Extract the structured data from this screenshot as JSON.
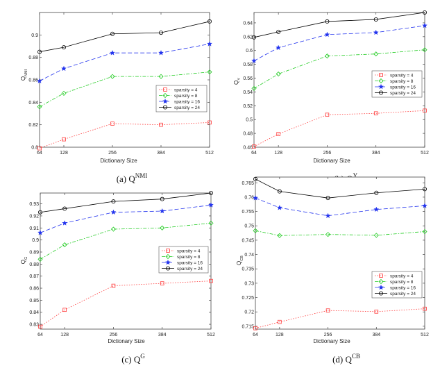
{
  "legend_labels": [
    "sparsity = 4",
    "sparsity = 8",
    "sparsity = 16",
    "sparsity = 24"
  ],
  "series_styles": [
    {
      "color": "#ff3b3b",
      "dash": "1.5,2",
      "marker": "square"
    },
    {
      "color": "#22cc22",
      "dash": "5,2,1.5,2",
      "marker": "diamond"
    },
    {
      "color": "#2233ee",
      "dash": "6,3",
      "marker": "star"
    },
    {
      "color": "#000000",
      "dash": "",
      "marker": "circle"
    }
  ],
  "chart_data": [
    {
      "type": "line",
      "caption_main": "(a) Q",
      "caption_sup": "NMI",
      "xlabel": "Dictionary Size",
      "ylabel": "Q",
      "ylabel_sub": "NMI",
      "x": [
        64,
        128,
        256,
        384,
        512
      ],
      "x_tick_labels": [
        "64",
        "128",
        "256",
        "384",
        "512"
      ],
      "ylim": [
        0.8,
        0.92
      ],
      "y_ticks": [
        "0.8",
        "0.82",
        "0.84",
        "0.86",
        "0.88",
        "0.9"
      ],
      "legend_position": "middle-right",
      "series": [
        {
          "name": "sparsity = 4",
          "values": [
            0.799,
            0.807,
            0.821,
            0.82,
            0.822
          ]
        },
        {
          "name": "sparsity = 8",
          "values": [
            0.836,
            0.848,
            0.863,
            0.863,
            0.867
          ]
        },
        {
          "name": "sparsity = 16",
          "values": [
            0.859,
            0.87,
            0.884,
            0.884,
            0.892
          ]
        },
        {
          "name": "sparsity = 24",
          "values": [
            0.885,
            0.889,
            0.901,
            0.902,
            0.912
          ]
        }
      ]
    },
    {
      "type": "line",
      "caption_main": "(b) Q",
      "caption_sup": "Y",
      "xlabel": "Dictionary Size",
      "ylabel": "Q",
      "ylabel_sub": "Y",
      "x": [
        64,
        128,
        256,
        384,
        512
      ],
      "x_tick_labels": [
        "64",
        "128",
        "256",
        "384",
        "512"
      ],
      "ylim": [
        0.46,
        0.655
      ],
      "y_ticks": [
        "0.46",
        "0.48",
        "0.5",
        "0.52",
        "0.54",
        "0.56",
        "0.58",
        "0.6",
        "0.62",
        "0.64"
      ],
      "legend_position": "lower-right",
      "series": [
        {
          "name": "sparsity = 4",
          "values": [
            0.461,
            0.479,
            0.507,
            0.509,
            0.513
          ]
        },
        {
          "name": "sparsity = 8",
          "values": [
            0.545,
            0.566,
            0.592,
            0.595,
            0.601
          ]
        },
        {
          "name": "sparsity = 16",
          "values": [
            0.585,
            0.604,
            0.623,
            0.626,
            0.636
          ]
        },
        {
          "name": "sparsity = 24",
          "values": [
            0.619,
            0.627,
            0.642,
            0.645,
            0.655
          ]
        }
      ]
    },
    {
      "type": "line",
      "caption_main": "(c) Q",
      "caption_sup": "G",
      "xlabel": "Dictionary Size",
      "ylabel": "Q",
      "ylabel_sub": "G",
      "x": [
        64,
        128,
        256,
        384,
        512
      ],
      "x_tick_labels": [
        "64",
        "128",
        "256",
        "384",
        "512"
      ],
      "ylim": [
        0.826,
        0.939
      ],
      "y_ticks": [
        "0.83",
        "0.84",
        "0.85",
        "0.86",
        "0.87",
        "0.88",
        "0.89",
        "0.9",
        "0.91",
        "0.92",
        "0.93"
      ],
      "legend_position": "lower-right",
      "series": [
        {
          "name": "sparsity = 4",
          "values": [
            0.828,
            0.842,
            0.862,
            0.864,
            0.866
          ]
        },
        {
          "name": "sparsity = 8",
          "values": [
            0.884,
            0.896,
            0.909,
            0.91,
            0.914
          ]
        },
        {
          "name": "sparsity = 16",
          "values": [
            0.906,
            0.914,
            0.923,
            0.924,
            0.929
          ]
        },
        {
          "name": "sparsity = 24",
          "values": [
            0.923,
            0.926,
            0.932,
            0.934,
            0.939
          ]
        }
      ]
    },
    {
      "type": "line",
      "caption_main": "(d) Q",
      "caption_sup": "CB",
      "xlabel": "Dictionary Size",
      "ylabel": "Q",
      "ylabel_sub": "CB",
      "x": [
        64,
        128,
        256,
        384,
        512
      ],
      "x_tick_labels": [
        "64",
        "128",
        "256",
        "384",
        "512"
      ],
      "ylim": [
        0.714,
        0.767
      ],
      "y_ticks": [
        "0.715",
        "0.72",
        "0.725",
        "0.73",
        "0.735",
        "0.74",
        "0.745",
        "0.75",
        "0.755",
        "0.76",
        "0.765"
      ],
      "legend_position": "lower-right",
      "series": [
        {
          "name": "sparsity = 4",
          "values": [
            0.7143,
            0.7165,
            0.7205,
            0.7201,
            0.7211
          ]
        },
        {
          "name": "sparsity = 8",
          "values": [
            0.7483,
            0.7466,
            0.747,
            0.7467,
            0.748
          ]
        },
        {
          "name": "sparsity = 16",
          "values": [
            0.7597,
            0.7563,
            0.7535,
            0.7557,
            0.757
          ]
        },
        {
          "name": "sparsity = 24",
          "values": [
            0.7663,
            0.762,
            0.7597,
            0.7615,
            0.7628
          ]
        }
      ]
    }
  ]
}
